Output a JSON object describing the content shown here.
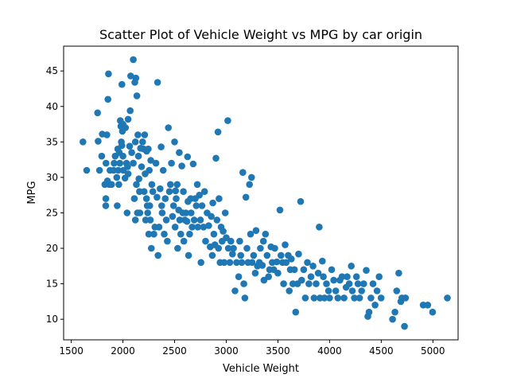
{
  "chart_data": {
    "type": "scatter",
    "title": "Scatter Plot of Vehicle Weight vs MPG by car origin",
    "xlabel": "Vehicle Weight",
    "ylabel": "MPG",
    "xlim": [
      1426,
      5244
    ],
    "ylim": [
      7.1,
      48.5
    ],
    "xticks": [
      1500,
      2000,
      2500,
      3000,
      3500,
      4000,
      4500,
      5000
    ],
    "yticks": [
      10,
      15,
      20,
      25,
      30,
      35,
      40,
      45
    ],
    "grid": false,
    "marker_color": "#1f77b4",
    "points": [
      [
        1613,
        35
      ],
      [
        1649,
        31
      ],
      [
        1755,
        39.1
      ],
      [
        1760,
        35.1
      ],
      [
        1773,
        31
      ],
      [
        1795,
        33
      ],
      [
        1800,
        36.1
      ],
      [
        1825,
        29
      ],
      [
        1834,
        26
      ],
      [
        1835,
        27
      ],
      [
        1836,
        32
      ],
      [
        1845,
        36
      ],
      [
        1850,
        29.5
      ],
      [
        1855,
        41
      ],
      [
        1860,
        44.6
      ],
      [
        1867,
        29
      ],
      [
        1875,
        31
      ],
      [
        1890,
        29
      ],
      [
        1910,
        31
      ],
      [
        1915,
        32
      ],
      [
        1925,
        33
      ],
      [
        1940,
        30
      ],
      [
        1945,
        26
      ],
      [
        1950,
        34
      ],
      [
        1955,
        31
      ],
      [
        1960,
        29
      ],
      [
        1965,
        33.5
      ],
      [
        1970,
        32
      ],
      [
        1975,
        38
      ],
      [
        1980,
        37.2
      ],
      [
        1985,
        35
      ],
      [
        1990,
        34.5
      ],
      [
        1990,
        43.1
      ],
      [
        1995,
        36.5
      ],
      [
        2000,
        37.5
      ],
      [
        2000,
        33
      ],
      [
        2003,
        31
      ],
      [
        2020,
        29.9
      ],
      [
        2025,
        37
      ],
      [
        2035,
        32
      ],
      [
        2040,
        25
      ],
      [
        2045,
        31.5
      ],
      [
        2050,
        30.5
      ],
      [
        2050,
        38.2
      ],
      [
        2065,
        34.4
      ],
      [
        2070,
        39.4
      ],
      [
        2075,
        44.3
      ],
      [
        2085,
        33.5
      ],
      [
        2100,
        46.6
      ],
      [
        2100,
        32
      ],
      [
        2110,
        27
      ],
      [
        2115,
        43.4
      ],
      [
        2120,
        35
      ],
      [
        2120,
        24
      ],
      [
        2125,
        44
      ],
      [
        2130,
        29
      ],
      [
        2135,
        41.5
      ],
      [
        2140,
        25
      ],
      [
        2145,
        36
      ],
      [
        2150,
        33
      ],
      [
        2155,
        29.8
      ],
      [
        2160,
        28
      ],
      [
        2164,
        25
      ],
      [
        2170,
        34.1
      ],
      [
        2180,
        31.5
      ],
      [
        2190,
        35
      ],
      [
        2200,
        34
      ],
      [
        2205,
        28
      ],
      [
        2210,
        36
      ],
      [
        2215,
        30.5
      ],
      [
        2220,
        24
      ],
      [
        2228,
        27
      ],
      [
        2230,
        33.7
      ],
      [
        2235,
        26
      ],
      [
        2240,
        25
      ],
      [
        2245,
        34
      ],
      [
        2250,
        22
      ],
      [
        2255,
        31
      ],
      [
        2260,
        26
      ],
      [
        2265,
        24
      ],
      [
        2270,
        32.4
      ],
      [
        2275,
        20
      ],
      [
        2280,
        29
      ],
      [
        2290,
        28
      ],
      [
        2300,
        22
      ],
      [
        2310,
        23
      ],
      [
        2320,
        32
      ],
      [
        2330,
        27.2
      ],
      [
        2335,
        43.4
      ],
      [
        2340,
        19
      ],
      [
        2350,
        23
      ],
      [
        2360,
        28.4
      ],
      [
        2370,
        34.3
      ],
      [
        2375,
        26
      ],
      [
        2380,
        25
      ],
      [
        2390,
        31
      ],
      [
        2400,
        22
      ],
      [
        2410,
        27
      ],
      [
        2420,
        24
      ],
      [
        2430,
        21
      ],
      [
        2440,
        37
      ],
      [
        2450,
        28
      ],
      [
        2460,
        29
      ],
      [
        2470,
        32
      ],
      [
        2480,
        24.5
      ],
      [
        2490,
        26
      ],
      [
        2500,
        35
      ],
      [
        2505,
        23
      ],
      [
        2510,
        28.1
      ],
      [
        2515,
        27
      ],
      [
        2525,
        29
      ],
      [
        2530,
        20
      ],
      [
        2540,
        25.4
      ],
      [
        2545,
        33.5
      ],
      [
        2550,
        24
      ],
      [
        2560,
        22
      ],
      [
        2570,
        31.6
      ],
      [
        2580,
        25
      ],
      [
        2585,
        28
      ],
      [
        2590,
        21
      ],
      [
        2600,
        24
      ],
      [
        2610,
        25
      ],
      [
        2620,
        23.8
      ],
      [
        2625,
        32.9
      ],
      [
        2630,
        26.6
      ],
      [
        2635,
        19
      ],
      [
        2645,
        22
      ],
      [
        2655,
        27
      ],
      [
        2660,
        25
      ],
      [
        2670,
        23
      ],
      [
        2680,
        31.9
      ],
      [
        2690,
        24
      ],
      [
        2700,
        27
      ],
      [
        2710,
        26
      ],
      [
        2720,
        29
      ],
      [
        2725,
        23
      ],
      [
        2740,
        27.5
      ],
      [
        2750,
        24
      ],
      [
        2755,
        18
      ],
      [
        2765,
        26
      ],
      [
        2780,
        23
      ],
      [
        2790,
        28
      ],
      [
        2800,
        21
      ],
      [
        2815,
        25
      ],
      [
        2830,
        23.2
      ],
      [
        2845,
        20.2
      ],
      [
        2855,
        24.5
      ],
      [
        2865,
        19
      ],
      [
        2870,
        26.4
      ],
      [
        2880,
        22
      ],
      [
        2890,
        20.5
      ],
      [
        2900,
        32.7
      ],
      [
        2910,
        24
      ],
      [
        2920,
        36.4
      ],
      [
        2925,
        20
      ],
      [
        2930,
        27
      ],
      [
        2940,
        18
      ],
      [
        2950,
        23
      ],
      [
        2960,
        21
      ],
      [
        2970,
        22.4
      ],
      [
        2980,
        18
      ],
      [
        2990,
        25
      ],
      [
        3000,
        21.5
      ],
      [
        3015,
        38
      ],
      [
        3020,
        20
      ],
      [
        3035,
        18
      ],
      [
        3045,
        21
      ],
      [
        3060,
        19.2
      ],
      [
        3070,
        20
      ],
      [
        3085,
        14
      ],
      [
        3100,
        18
      ],
      [
        3120,
        16
      ],
      [
        3130,
        21
      ],
      [
        3140,
        19
      ],
      [
        3150,
        18
      ],
      [
        3160,
        30.7
      ],
      [
        3170,
        15
      ],
      [
        3180,
        13
      ],
      [
        3190,
        27.2
      ],
      [
        3200,
        20
      ],
      [
        3210,
        18
      ],
      [
        3225,
        29
      ],
      [
        3235,
        22
      ],
      [
        3245,
        30
      ],
      [
        3250,
        18
      ],
      [
        3265,
        19
      ],
      [
        3280,
        16.5
      ],
      [
        3288,
        22.5
      ],
      [
        3302,
        17.5
      ],
      [
        3320,
        18
      ],
      [
        3330,
        20
      ],
      [
        3350,
        17.6
      ],
      [
        3360,
        21
      ],
      [
        3365,
        15.5
      ],
      [
        3380,
        22
      ],
      [
        3395,
        19
      ],
      [
        3410,
        16
      ],
      [
        3420,
        17
      ],
      [
        3433,
        20.2
      ],
      [
        3445,
        18
      ],
      [
        3460,
        17
      ],
      [
        3470,
        20
      ],
      [
        3490,
        18.1
      ],
      [
        3500,
        16.5
      ],
      [
        3520,
        25.4
      ],
      [
        3530,
        19
      ],
      [
        3545,
        18
      ],
      [
        3555,
        15
      ],
      [
        3570,
        20.5
      ],
      [
        3580,
        18
      ],
      [
        3600,
        19
      ],
      [
        3610,
        14
      ],
      [
        3620,
        17
      ],
      [
        3630,
        18.5
      ],
      [
        3645,
        15
      ],
      [
        3660,
        17
      ],
      [
        3672,
        11
      ],
      [
        3690,
        15
      ],
      [
        3700,
        19.2
      ],
      [
        3720,
        26.6
      ],
      [
        3730,
        15.5
      ],
      [
        3750,
        17
      ],
      [
        3765,
        13
      ],
      [
        3785,
        18
      ],
      [
        3800,
        15
      ],
      [
        3820,
        16
      ],
      [
        3840,
        17.5
      ],
      [
        3850,
        13
      ],
      [
        3870,
        15
      ],
      [
        3890,
        16.5
      ],
      [
        3900,
        23
      ],
      [
        3907,
        13
      ],
      [
        3930,
        18.2
      ],
      [
        3940,
        16
      ],
      [
        3950,
        13
      ],
      [
        3970,
        15
      ],
      [
        3990,
        14
      ],
      [
        4000,
        13
      ],
      [
        4020,
        17
      ],
      [
        4040,
        15.5
      ],
      [
        4060,
        14
      ],
      [
        4080,
        13
      ],
      [
        4100,
        15.5
      ],
      [
        4120,
        16
      ],
      [
        4140,
        13
      ],
      [
        4160,
        14.5
      ],
      [
        4170,
        16
      ],
      [
        4190,
        15
      ],
      [
        4210,
        17.5
      ],
      [
        4220,
        14
      ],
      [
        4240,
        13
      ],
      [
        4260,
        16
      ],
      [
        4275,
        15
      ],
      [
        4290,
        13
      ],
      [
        4310,
        14
      ],
      [
        4330,
        15
      ],
      [
        4355,
        16.9
      ],
      [
        4370,
        10.4
      ],
      [
        4382,
        11
      ],
      [
        4400,
        13
      ],
      [
        4420,
        15
      ],
      [
        4440,
        12
      ],
      [
        4460,
        14
      ],
      [
        4480,
        16
      ],
      [
        4499,
        13
      ],
      [
        4610,
        10
      ],
      [
        4633,
        11
      ],
      [
        4650,
        14
      ],
      [
        4670,
        16.5
      ],
      [
        4690,
        12.5
      ],
      [
        4700,
        13
      ],
      [
        4725,
        9
      ],
      [
        4735,
        13
      ],
      [
        4906,
        12
      ],
      [
        4950,
        12
      ],
      [
        4997,
        11
      ],
      [
        5140,
        13
      ]
    ]
  }
}
